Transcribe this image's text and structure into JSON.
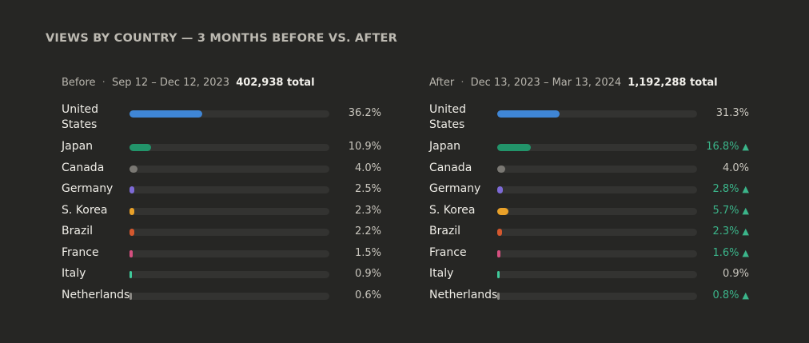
{
  "title": "VIEWS BY COUNTRY — 3 MONTHS BEFORE VS. AFTER",
  "colors": {
    "United States": "#3f86d6",
    "Japan": "#22946a",
    "Canada": "#7a7873",
    "Germany": "#7d6ad6",
    "S. Korea": "#e9a129",
    "Brazil": "#d4582e",
    "France": "#d44f7f",
    "Italy": "#3fc99a",
    "Netherlands": "#8a8883",
    "increase_text": "#3bb58a"
  },
  "chart_data": [
    {
      "type": "bar",
      "panel": "before",
      "heading": "Before",
      "separator": "·",
      "range": "Sep 12 – Dec 12, 2023",
      "total": "402,938 total",
      "categories": [
        "United States",
        "Japan",
        "Canada",
        "Germany",
        "S. Korea",
        "Brazil",
        "France",
        "Italy",
        "Netherlands"
      ],
      "labels": [
        "United States",
        "Japan",
        "Canada",
        "Germany",
        "S. Korea",
        "Brazil",
        "France",
        "Italy",
        "Netherlands"
      ],
      "values": [
        36.2,
        10.9,
        4.0,
        2.5,
        2.3,
        2.2,
        1.5,
        0.9,
        0.6
      ],
      "value_labels": [
        "36.2%",
        "10.9%",
        "4.0%",
        "2.5%",
        "2.3%",
        "2.2%",
        "1.5%",
        "0.9%",
        "0.6%"
      ],
      "increase": [
        false,
        false,
        false,
        false,
        false,
        false,
        false,
        false,
        false
      ],
      "xlim": [
        0,
        100
      ]
    },
    {
      "type": "bar",
      "panel": "after",
      "heading": "After",
      "separator": "·",
      "range": "Dec 13, 2023 – Mar 13, 2024",
      "total": "1,192,288 total",
      "categories": [
        "United States",
        "Japan",
        "Canada",
        "Germany",
        "S. Korea",
        "Brazil",
        "France",
        "Italy",
        "Netherlands"
      ],
      "labels": [
        "United States",
        "Japan",
        "Canada",
        "Germany",
        "S. Korea",
        "Brazil",
        "France",
        "Italy",
        "Netherlands"
      ],
      "values": [
        31.3,
        16.8,
        4.0,
        2.8,
        5.7,
        2.3,
        1.6,
        0.9,
        0.8
      ],
      "value_labels": [
        "31.3%",
        "16.8%",
        "4.0%",
        "2.8%",
        "5.7%",
        "2.3%",
        "1.6%",
        "0.9%",
        "0.8%"
      ],
      "increase": [
        false,
        true,
        false,
        true,
        true,
        true,
        true,
        false,
        true
      ],
      "arrow": "▲",
      "xlim": [
        0,
        100
      ]
    }
  ]
}
